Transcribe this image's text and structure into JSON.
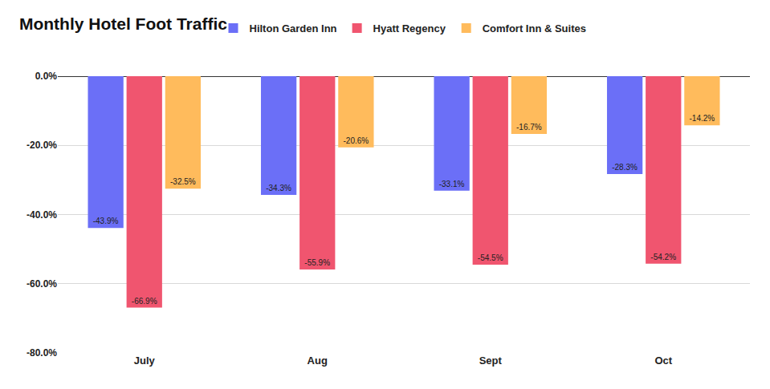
{
  "chart_data": {
    "type": "bar",
    "title": "Monthly Hotel Foot Traffic",
    "categories": [
      "July",
      "Aug",
      "Sept",
      "Oct"
    ],
    "series": [
      {
        "name": "Hilton Garden Inn",
        "color": "#6b6ff7",
        "values": [
          -43.9,
          -34.3,
          -33.1,
          -28.3
        ],
        "value_labels": [
          "-43.9%",
          "-34.3%",
          "-33.1%",
          "-28.3%"
        ]
      },
      {
        "name": "Hyatt Regency",
        "color": "#f0556f",
        "values": [
          -66.9,
          -55.9,
          -54.5,
          -54.2
        ],
        "value_labels": [
          "-66.9%",
          "-55.9%",
          "-54.5%",
          "-54.2%"
        ]
      },
      {
        "name": "Comfort Inn & Suites",
        "color": "#ffbb5c",
        "values": [
          -32.5,
          -20.6,
          -16.7,
          -14.2
        ],
        "value_labels": [
          "-32.5%",
          "-20.6%",
          "-16.7%",
          "-14.2%"
        ]
      }
    ],
    "ylim": [
      -80,
      0
    ],
    "yticks": [
      {
        "value": -80,
        "label": "-80.0%"
      },
      {
        "value": -60,
        "label": "-60.0%"
      },
      {
        "value": -40,
        "label": "-40.0%"
      },
      {
        "value": -20,
        "label": "-20.0%"
      },
      {
        "value": 0,
        "label": "0.0%"
      }
    ],
    "grid": true,
    "legend": "top",
    "data_labels": true
  }
}
